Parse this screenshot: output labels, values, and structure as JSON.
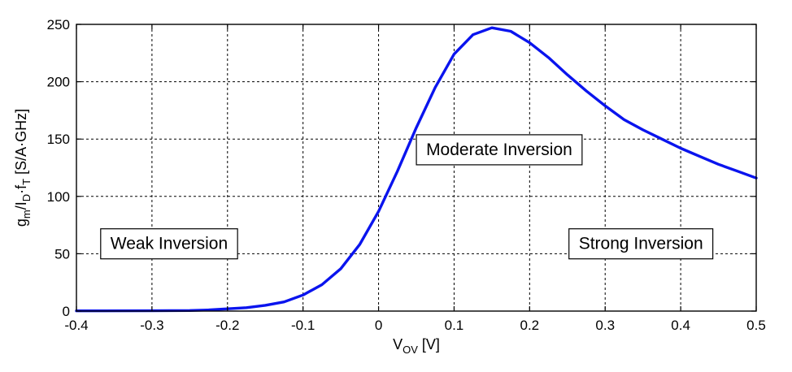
{
  "chart_data": {
    "type": "line",
    "title": "",
    "xlabel": "V",
    "xlabel_sub": "OV",
    "xlabel_unit": " [V]",
    "ylabel_parts": [
      {
        "t": "g",
        "sub": false
      },
      {
        "t": "m",
        "sub": true
      },
      {
        "t": "/I",
        "sub": false
      },
      {
        "t": "D",
        "sub": true
      },
      {
        "t": "·f",
        "sub": false
      },
      {
        "t": "T",
        "sub": true
      },
      {
        "t": " [S/A·GHz]",
        "sub": false
      }
    ],
    "xlim": [
      -0.4,
      0.5
    ],
    "ylim": [
      0,
      250
    ],
    "x_ticks": [
      -0.4,
      -0.3,
      -0.2,
      -0.1,
      0,
      0.1,
      0.2,
      0.3,
      0.4,
      0.5
    ],
    "x_tick_labels": [
      "-0.4",
      "-0.3",
      "-0.2",
      "-0.1",
      "0",
      "0.1",
      "0.2",
      "0.3",
      "0.4",
      "0.5"
    ],
    "y_ticks": [
      0,
      50,
      100,
      150,
      200,
      250
    ],
    "y_tick_labels": [
      "0",
      "50",
      "100",
      "150",
      "200",
      "250"
    ],
    "grid": true,
    "series": [
      {
        "color": "#0a14ee",
        "x": [
          -0.4,
          -0.3,
          -0.25,
          -0.225,
          -0.2,
          -0.175,
          -0.15,
          -0.125,
          -0.1,
          -0.075,
          -0.05,
          -0.025,
          0,
          0.025,
          0.05,
          0.075,
          0.1,
          0.125,
          0.15,
          0.175,
          0.2,
          0.225,
          0.25,
          0.275,
          0.3,
          0.325,
          0.35,
          0.375,
          0.4,
          0.425,
          0.45,
          0.475,
          0.5
        ],
        "y": [
          0.2,
          0.3,
          0.5,
          1,
          2,
          3,
          5,
          8,
          14,
          23,
          37,
          58,
          87,
          122,
          160,
          195,
          224,
          241,
          247,
          244,
          234,
          221,
          206,
          192,
          179,
          167,
          158,
          150,
          142,
          135,
          128,
          122,
          116
        ]
      }
    ],
    "annotations": [
      {
        "text": "Weak Inversion",
        "x": -0.355,
        "y": 59,
        "anchor": "left"
      },
      {
        "text": "Moderate Inversion",
        "x": 0.063,
        "y": 141,
        "anchor": "left"
      },
      {
        "text": "Strong Inversion",
        "x": 0.265,
        "y": 59,
        "anchor": "left"
      }
    ]
  }
}
